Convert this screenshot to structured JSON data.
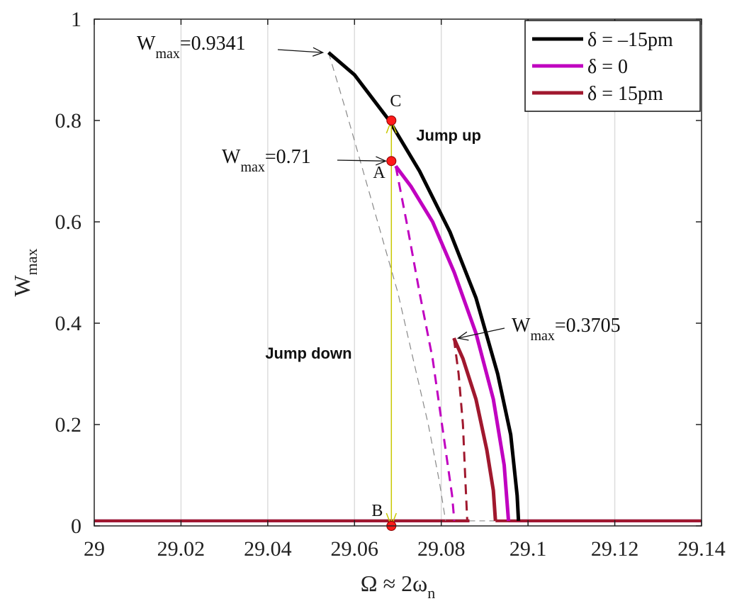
{
  "chart_data": {
    "type": "line",
    "title": "",
    "xlabel": "Ω ≈ 2ω",
    "xlabel_sub": "n",
    "ylabel": "W",
    "ylabel_sub": "max",
    "xlim": [
      29,
      29.14
    ],
    "ylim": [
      0,
      1
    ],
    "xticks": [
      29,
      29.02,
      29.04,
      29.06,
      29.08,
      29.1,
      29.12,
      29.14
    ],
    "xtick_labels": [
      "29",
      "29.02",
      "29.04",
      "29.06",
      "29.08",
      "29.1",
      "29.12",
      "29.14"
    ],
    "yticks": [
      0,
      0.2,
      0.4,
      0.6,
      0.8,
      1
    ],
    "ytick_labels": [
      "0",
      "0.2",
      "0.4",
      "0.6",
      "0.8",
      "1"
    ],
    "grid": "vertical",
    "legend_position": "top-right",
    "series": [
      {
        "name": "δ = –15pm",
        "color": "#000000",
        "stable_upper": [
          [
            29.054,
            0.9341
          ],
          [
            29.06,
            0.89
          ],
          [
            29.068,
            0.8
          ],
          [
            29.075,
            0.7
          ],
          [
            29.082,
            0.58
          ],
          [
            29.088,
            0.45
          ],
          [
            29.093,
            0.3
          ],
          [
            29.096,
            0.18
          ],
          [
            29.0975,
            0.06
          ],
          [
            29.0978,
            0.01
          ]
        ],
        "unstable": [
          [
            29.054,
            0.9341
          ],
          [
            29.058,
            0.82
          ],
          [
            29.062,
            0.7
          ],
          [
            29.066,
            0.58
          ],
          [
            29.07,
            0.46
          ],
          [
            29.0735,
            0.33
          ],
          [
            29.077,
            0.2
          ],
          [
            29.0795,
            0.09
          ],
          [
            29.081,
            0.01
          ]
        ],
        "baseline_y": 0.01
      },
      {
        "name": "δ = 0",
        "color": "#c000c0",
        "stable_upper": [
          [
            29.0695,
            0.71
          ],
          [
            29.073,
            0.67
          ],
          [
            29.078,
            0.6
          ],
          [
            29.083,
            0.5
          ],
          [
            29.088,
            0.38
          ],
          [
            29.092,
            0.25
          ],
          [
            29.0945,
            0.12
          ],
          [
            29.0955,
            0.01
          ]
        ],
        "unstable": [
          [
            29.0695,
            0.71
          ],
          [
            29.072,
            0.6
          ],
          [
            29.075,
            0.46
          ],
          [
            29.078,
            0.33
          ],
          [
            29.0805,
            0.18
          ],
          [
            29.0825,
            0.06
          ],
          [
            29.083,
            0.01
          ]
        ],
        "baseline_y": 0.01
      },
      {
        "name": "δ = 15pm",
        "color": "#a0182e",
        "stable_upper": [
          [
            29.0829,
            0.3705
          ],
          [
            29.085,
            0.33
          ],
          [
            29.088,
            0.25
          ],
          [
            29.0905,
            0.15
          ],
          [
            29.092,
            0.07
          ],
          [
            29.0925,
            0.01
          ]
        ],
        "unstable": [
          [
            29.0829,
            0.3705
          ],
          [
            29.084,
            0.3
          ],
          [
            29.085,
            0.2
          ],
          [
            29.0855,
            0.1
          ],
          [
            29.086,
            0.01
          ]
        ],
        "baseline_y": 0.01
      }
    ],
    "points": [
      {
        "label": "A",
        "x": 29.0685,
        "y": 0.72
      },
      {
        "label": "B",
        "x": 29.0685,
        "y": 0.0
      },
      {
        "label": "C",
        "x": 29.0685,
        "y": 0.8
      }
    ],
    "annotations": [
      {
        "text": "W",
        "sub": "max",
        "value": "=0.9341",
        "target": [
          29.054,
          0.9341
        ]
      },
      {
        "text": "W",
        "sub": "max",
        "value": "=0.71",
        "target": [
          29.0685,
          0.72
        ]
      },
      {
        "text": "W",
        "sub": "max",
        "value": "=0.3705",
        "target": [
          29.0829,
          0.3705
        ]
      }
    ],
    "jump_labels": {
      "up": "Jump up",
      "down": "Jump down"
    },
    "jump_color": "#c8c800"
  }
}
